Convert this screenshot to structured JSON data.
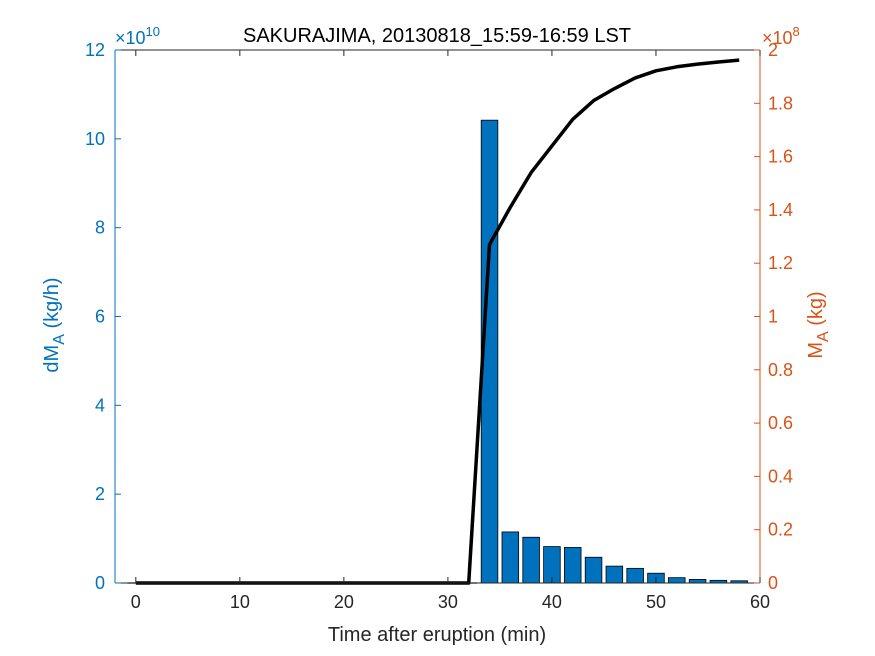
{
  "chart_data": {
    "type": "bar",
    "title": "SAKURAJIMA, 20130818_15:59-16:59 LST",
    "xlabel": "Time after eruption (min)",
    "xlim": [
      -2,
      60
    ],
    "xticks": [
      0,
      10,
      20,
      30,
      40,
      50,
      60
    ],
    "y_left": {
      "label_main": "dM",
      "label_sub": "A",
      "label_unit": " (kg/h)",
      "exponent_text": "×10",
      "exponent_power": "10",
      "ylim": [
        0,
        12
      ],
      "ticks": [
        0,
        2,
        4,
        6,
        8,
        10,
        12
      ],
      "color": "#0072BD"
    },
    "y_right": {
      "label_main": "M",
      "label_sub": "A",
      "label_unit": " (kg)",
      "exponent_text": "×10",
      "exponent_power": "8",
      "ylim": [
        0,
        2
      ],
      "ticks": [
        0,
        0.2,
        0.4,
        0.6,
        0.8,
        1,
        1.2,
        1.4,
        1.6,
        1.8,
        2
      ],
      "tick_labels": [
        "0",
        "0.2",
        "0.4",
        "0.6",
        "0.8",
        "1",
        "1.2",
        "1.4",
        "1.6",
        "1.8",
        "2"
      ],
      "color": "#D95319"
    },
    "bars": {
      "x": [
        34,
        36,
        38,
        40,
        42,
        44,
        46,
        48,
        50,
        52,
        54,
        56,
        58
      ],
      "values": [
        10.42,
        1.15,
        1.03,
        0.82,
        0.8,
        0.58,
        0.38,
        0.33,
        0.22,
        0.12,
        0.08,
        0.06,
        0.05
      ],
      "color": "#0072BD"
    },
    "bars_zero_line": {
      "x_start": 0,
      "x_end": 32
    },
    "cumulative_line": {
      "x": [
        0,
        32,
        34,
        36,
        38,
        40,
        42,
        44,
        46,
        48,
        50,
        52,
        54,
        56,
        58
      ],
      "values": [
        0,
        0,
        1.27,
        1.41,
        1.54,
        1.64,
        1.74,
        1.81,
        1.855,
        1.895,
        1.922,
        1.937,
        1.947,
        1.955,
        1.962
      ],
      "color": "#000000"
    }
  }
}
